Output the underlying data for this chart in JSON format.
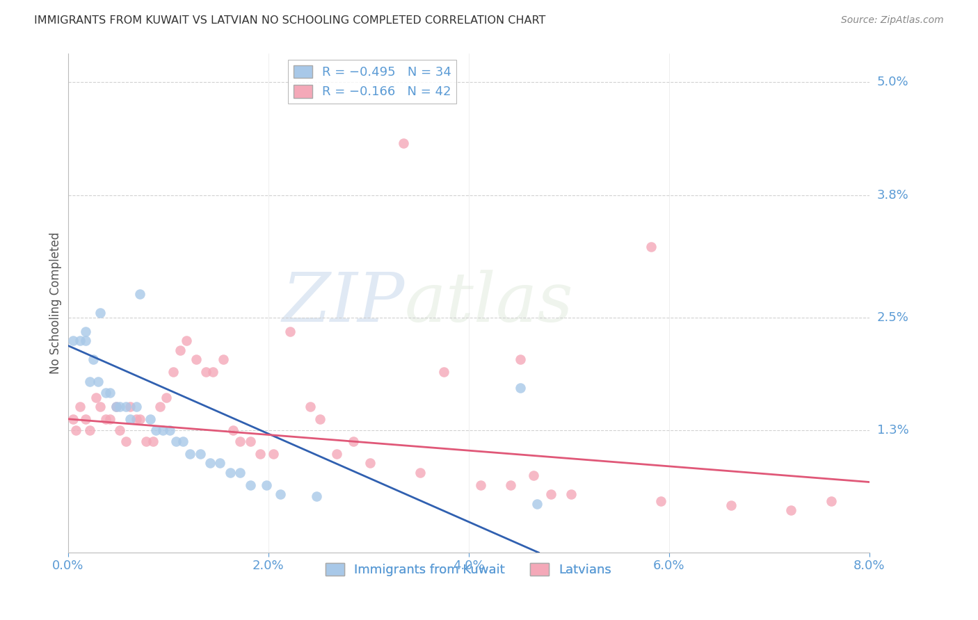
{
  "title": "IMMIGRANTS FROM KUWAIT VS LATVIAN NO SCHOOLING COMPLETED CORRELATION CHART",
  "source": "Source: ZipAtlas.com",
  "ylabel": "No Schooling Completed",
  "x_tick_labels": [
    "0.0%",
    "2.0%",
    "4.0%",
    "6.0%",
    "8.0%"
  ],
  "x_tick_values": [
    0.0,
    2.0,
    4.0,
    6.0,
    8.0
  ],
  "y_tick_labels": [
    "1.3%",
    "2.5%",
    "3.8%",
    "5.0%"
  ],
  "y_tick_values": [
    1.3,
    2.5,
    3.8,
    5.0
  ],
  "xlim": [
    0.0,
    8.0
  ],
  "ylim": [
    0.0,
    5.3
  ],
  "legend_label1": "Immigrants from Kuwait",
  "legend_label2": "Latvians",
  "color_blue": "#a8c8e8",
  "color_pink": "#f4a8b8",
  "color_blue_line": "#3060b0",
  "color_pink_line": "#e05878",
  "color_axis_labels": "#5b9bd5",
  "blue_x": [
    0.05,
    0.12,
    0.18,
    0.18,
    0.22,
    0.25,
    0.3,
    0.32,
    0.38,
    0.42,
    0.48,
    0.52,
    0.58,
    0.62,
    0.68,
    0.72,
    0.82,
    0.88,
    0.95,
    1.02,
    1.08,
    1.15,
    1.22,
    1.32,
    1.42,
    1.52,
    1.62,
    1.72,
    1.82,
    1.98,
    2.12,
    2.48,
    4.52,
    4.68
  ],
  "blue_y": [
    2.25,
    2.25,
    2.25,
    2.35,
    1.82,
    2.05,
    1.82,
    2.55,
    1.7,
    1.7,
    1.55,
    1.55,
    1.55,
    1.42,
    1.55,
    2.75,
    1.42,
    1.3,
    1.3,
    1.3,
    1.18,
    1.18,
    1.05,
    1.05,
    0.95,
    0.95,
    0.85,
    0.85,
    0.72,
    0.72,
    0.62,
    0.6,
    1.75,
    0.52
  ],
  "pink_x": [
    0.05,
    0.08,
    0.12,
    0.18,
    0.22,
    0.28,
    0.32,
    0.38,
    0.42,
    0.48,
    0.52,
    0.58,
    0.62,
    0.68,
    0.72,
    0.78,
    0.85,
    0.92,
    0.98,
    1.05,
    1.12,
    1.18,
    1.28,
    1.38,
    1.45,
    1.55,
    1.65,
    1.72,
    1.82,
    1.92,
    2.05,
    2.22,
    2.42,
    2.52,
    2.68,
    2.85,
    3.02,
    3.35,
    3.52,
    3.75,
    4.12,
    4.42,
    4.52,
    4.65,
    4.82,
    5.02,
    5.82,
    5.92,
    6.62,
    7.22,
    7.62
  ],
  "pink_y": [
    1.42,
    1.3,
    1.55,
    1.42,
    1.3,
    1.65,
    1.55,
    1.42,
    1.42,
    1.55,
    1.3,
    1.18,
    1.55,
    1.42,
    1.42,
    1.18,
    1.18,
    1.55,
    1.65,
    1.92,
    2.15,
    2.25,
    2.05,
    1.92,
    1.92,
    2.05,
    1.3,
    1.18,
    1.18,
    1.05,
    1.05,
    2.35,
    1.55,
    1.42,
    1.05,
    1.18,
    0.95,
    4.35,
    0.85,
    1.92,
    0.72,
    0.72,
    2.05,
    0.82,
    0.62,
    0.62,
    3.25,
    0.55,
    0.5,
    0.45,
    0.55
  ],
  "blue_line_x": [
    0.0,
    4.7
  ],
  "blue_line_y": [
    2.2,
    0.0
  ],
  "pink_line_x": [
    0.0,
    8.0
  ],
  "pink_line_y": [
    1.42,
    0.75
  ],
  "watermark_zip": "ZIP",
  "watermark_atlas": "atlas",
  "background_color": "#ffffff"
}
